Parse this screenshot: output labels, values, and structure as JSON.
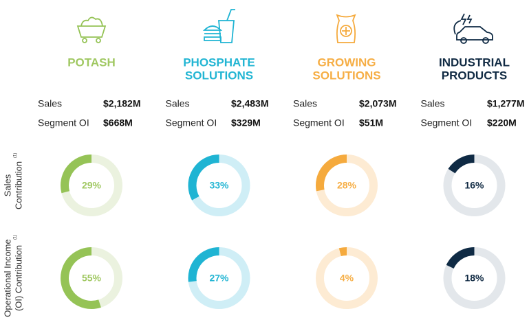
{
  "labels": {
    "sales": "Sales",
    "oi": "Segment OI"
  },
  "row_labels": [
    {
      "lines": [
        "Sales",
        "Contribution"
      ],
      "note": "(1)"
    },
    {
      "lines": [
        "Operational Income",
        "(OI) Contribution"
      ],
      "note": "(1)"
    }
  ],
  "segments": [
    {
      "name": [
        "POTASH"
      ],
      "sales": "$2,182M",
      "oi": "$668M",
      "color": "#95c356",
      "track": "#ebf2df",
      "text_color": "#a0c862",
      "sales_contribution": 29,
      "sales_contribution_label": "29%",
      "oi_contribution": 55,
      "oi_contribution_label": "55%"
    },
    {
      "name": [
        "PHOSPHATE",
        "SOLUTIONS"
      ],
      "sales": "$2,483M",
      "oi": "$329M",
      "color": "#1fb4d3",
      "track": "#cfeef6",
      "text_color": "#22b5d3",
      "sales_contribution": 33,
      "sales_contribution_label": "33%",
      "oi_contribution": 27,
      "oi_contribution_label": "27%"
    },
    {
      "name": [
        "GROWING",
        "SOLUTIONS"
      ],
      "sales": "$2,073M",
      "oi": "$51M",
      "color": "#f5aa3d",
      "track": "#fdebd3",
      "text_color": "#f6ae45",
      "sales_contribution": 28,
      "sales_contribution_label": "28%",
      "oi_contribution": 4,
      "oi_contribution_label": "4%"
    },
    {
      "name": [
        "INDUSTRIAL",
        "PRODUCTS"
      ],
      "sales": "$1,277M",
      "oi": "$220M",
      "color": "#0f2a44",
      "track": "#e3e7eb",
      "text_color": "#102a43",
      "sales_contribution": 16,
      "sales_contribution_label": "16%",
      "oi_contribution": 18,
      "oi_contribution_label": "18%"
    }
  ]
}
